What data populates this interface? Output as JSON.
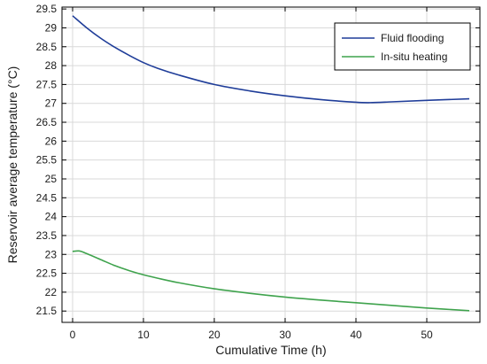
{
  "chart_data": {
    "type": "line",
    "xlabel": "Cumulative Time (h)",
    "ylabel": "Reservoir average temperature (°C)",
    "xlim": [
      -1.5,
      57.5
    ],
    "ylim": [
      21.2,
      29.55
    ],
    "xticks": [
      0,
      10,
      20,
      30,
      40,
      50
    ],
    "xtick_labels": [
      "0",
      "10",
      "20",
      "30",
      "40",
      "50"
    ],
    "yticks": [
      21.5,
      22,
      22.5,
      23,
      23.5,
      24,
      24.5,
      25,
      25.5,
      26,
      26.5,
      27,
      27.5,
      28,
      28.5,
      29,
      29.5
    ],
    "ytick_labels": [
      "21.5",
      "22",
      "22.5",
      "23",
      "23.5",
      "24",
      "24.5",
      "25",
      "25.5",
      "26",
      "26.5",
      "27",
      "27.5",
      "28",
      "28.5",
      "29",
      "29.5"
    ],
    "grid": true,
    "legend_position": "top-right",
    "series": [
      {
        "name": "Fluid flooding",
        "color": "#1f3d99",
        "x": [
          0,
          2,
          4,
          6,
          8,
          10,
          12,
          15,
          20,
          25,
          30,
          35,
          40,
          42,
          45,
          50,
          56
        ],
        "y": [
          29.32,
          29.0,
          28.72,
          28.48,
          28.27,
          28.08,
          27.93,
          27.75,
          27.5,
          27.33,
          27.2,
          27.1,
          27.03,
          27.02,
          27.04,
          27.08,
          27.12
        ]
      },
      {
        "name": "In-situ heating",
        "color": "#3fa34d",
        "x": [
          0,
          1,
          2,
          4,
          6,
          8,
          10,
          12,
          15,
          20,
          25,
          30,
          35,
          40,
          45,
          50,
          56
        ],
        "y": [
          23.08,
          23.09,
          23.02,
          22.86,
          22.7,
          22.57,
          22.46,
          22.37,
          22.25,
          22.09,
          21.97,
          21.87,
          21.79,
          21.72,
          21.65,
          21.58,
          21.51
        ]
      }
    ]
  }
}
